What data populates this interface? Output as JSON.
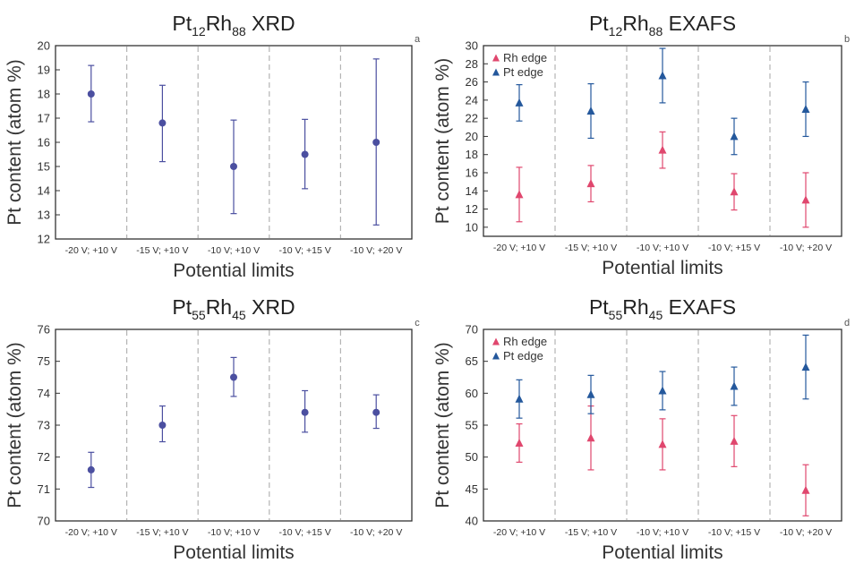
{
  "chart_data": [
    {
      "id": "a",
      "type": "scatter",
      "panel_letter": "a",
      "title": {
        "main1": "Pt",
        "sub1": "12",
        "main2": "Rh",
        "sub2": "88",
        "tail": " XRD"
      },
      "xlabel": "Potential limits",
      "ylabel": "Pt content (atom %)",
      "categories": [
        "-20 V; +10 V",
        "-15 V; +10 V",
        "-10 V; +10 V",
        "-10 V; +15 V",
        "-10 V; +20 V"
      ],
      "ylim": [
        12,
        20
      ],
      "yticks": [
        12,
        13,
        14,
        15,
        16,
        17,
        18,
        19,
        20
      ],
      "legend": [],
      "series": [
        {
          "marker": "circle",
          "color": "#4b4fa0",
          "values": [
            18.0,
            16.8,
            15.0,
            15.5,
            16.0
          ],
          "err_low": [
            16.85,
            15.2,
            13.05,
            14.08,
            12.58
          ],
          "err_high": [
            19.18,
            18.36,
            16.92,
            16.95,
            19.45
          ]
        }
      ]
    },
    {
      "id": "b",
      "type": "scatter",
      "panel_letter": "b",
      "title": {
        "main1": "Pt",
        "sub1": "12",
        "main2": "Rh",
        "sub2": "88",
        "tail": " EXAFS"
      },
      "xlabel": "Potential limits",
      "ylabel": "Pt content (atom %)",
      "categories": [
        "-20 V; +10 V",
        "-15 V; +10 V",
        "-10 V; +10 V",
        "-10 V; +15 V",
        "-10 V; +20 V"
      ],
      "ylim": [
        9,
        30
      ],
      "yticks": [
        10,
        12,
        14,
        16,
        18,
        20,
        22,
        24,
        26,
        28,
        30
      ],
      "legend": [
        "Rh edge",
        "Pt edge"
      ],
      "series": [
        {
          "name": "Rh edge",
          "marker": "triangle",
          "color": "#e0476e",
          "values": [
            13.6,
            14.8,
            18.5,
            13.9,
            13.0
          ],
          "err_low": [
            10.6,
            12.8,
            16.5,
            11.9,
            10.0
          ],
          "err_high": [
            16.6,
            16.8,
            20.5,
            15.9,
            16.0
          ]
        },
        {
          "name": "Pt edge",
          "marker": "triangle",
          "color": "#24589c",
          "values": [
            23.7,
            22.8,
            26.7,
            20.0,
            23.0
          ],
          "err_low": [
            21.7,
            19.8,
            23.7,
            18.0,
            20.0
          ],
          "err_high": [
            25.7,
            25.8,
            29.7,
            22.0,
            26.0
          ]
        }
      ]
    },
    {
      "id": "c",
      "type": "scatter",
      "panel_letter": "c",
      "title": {
        "main1": "Pt",
        "sub1": "55",
        "main2": "Rh",
        "sub2": "45",
        "tail": " XRD"
      },
      "xlabel": "Potential limits",
      "ylabel": "Pt content (atom %)",
      "categories": [
        "-20 V; +10 V",
        "-15 V; +10 V",
        "-10 V; +10 V",
        "-10 V; +15 V",
        "-10 V; +20 V"
      ],
      "ylim": [
        70,
        76
      ],
      "yticks": [
        70,
        71,
        72,
        73,
        74,
        75,
        76
      ],
      "legend": [],
      "series": [
        {
          "marker": "circle",
          "color": "#4b4fa0",
          "values": [
            71.6,
            73.0,
            74.5,
            73.4,
            73.4
          ],
          "err_low": [
            71.05,
            72.48,
            73.9,
            72.78,
            72.9
          ],
          "err_high": [
            72.15,
            73.6,
            75.12,
            74.08,
            73.95
          ]
        }
      ]
    },
    {
      "id": "d",
      "type": "scatter",
      "panel_letter": "d",
      "title": {
        "main1": "Pt",
        "sub1": "55",
        "main2": "Rh",
        "sub2": "45",
        "tail": " EXAFS"
      },
      "xlabel": "Potential limits",
      "ylabel": "Pt content (atom %)",
      "categories": [
        "-20 V; +10 V",
        "-15 V; +10 V",
        "-10 V; +10 V",
        "-10 V; +15 V",
        "-10 V; +20 V"
      ],
      "ylim": [
        40,
        70
      ],
      "yticks": [
        40,
        45,
        50,
        55,
        60,
        65,
        70
      ],
      "legend": [
        "Rh edge",
        "Pt edge"
      ],
      "series": [
        {
          "name": "Rh edge",
          "marker": "triangle",
          "color": "#e0476e",
          "values": [
            52.2,
            53.0,
            52.0,
            52.5,
            44.8
          ],
          "err_low": [
            49.2,
            48.0,
            48.0,
            48.5,
            40.8
          ],
          "err_high": [
            55.2,
            58.0,
            56.0,
            56.5,
            48.8
          ]
        },
        {
          "name": "Pt edge",
          "marker": "triangle",
          "color": "#24589c",
          "values": [
            59.1,
            59.8,
            60.4,
            61.1,
            64.1
          ],
          "err_low": [
            56.1,
            56.8,
            57.4,
            58.1,
            59.1
          ],
          "err_high": [
            62.1,
            62.8,
            63.4,
            64.1,
            69.1
          ]
        }
      ]
    }
  ]
}
